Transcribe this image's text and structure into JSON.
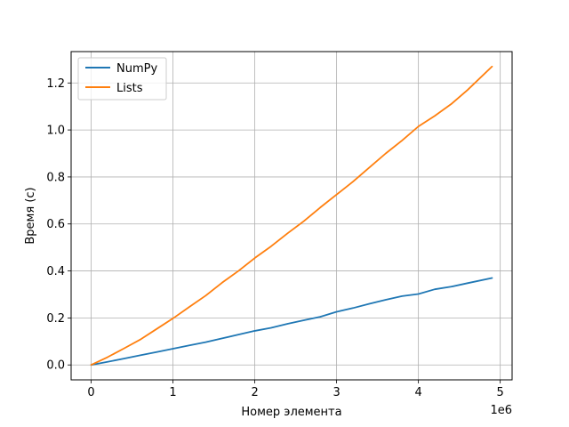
{
  "chart_data": {
    "type": "line",
    "xlabel": "Номер элемента",
    "ylabel": "Время (с)",
    "x_offset_text": "1e6",
    "x_scale": 1000000,
    "xlim": [
      -0.245,
      5.145
    ],
    "ylim": [
      -0.0635,
      1.3335
    ],
    "xticks": [
      0,
      1,
      2,
      3,
      4,
      5
    ],
    "xtick_labels": [
      "0",
      "1",
      "2",
      "3",
      "4",
      "5"
    ],
    "yticks": [
      0.0,
      0.2,
      0.4,
      0.6,
      0.8,
      1.0,
      1.2
    ],
    "ytick_labels": [
      "0.0",
      "0.2",
      "0.4",
      "0.6",
      "0.8",
      "1.0",
      "1.2"
    ],
    "grid": true,
    "legend_position": "top-left",
    "x": [
      0,
      0.2,
      0.4,
      0.6,
      0.8,
      1.0,
      1.2,
      1.4,
      1.6,
      1.8,
      2.0,
      2.2,
      2.4,
      2.6,
      2.8,
      3.0,
      3.2,
      3.4,
      3.6,
      3.8,
      4.0,
      4.2,
      4.4,
      4.6,
      4.9
    ],
    "series": [
      {
        "name": "NumPy",
        "color": "#1f77b4",
        "values": [
          0.0,
          0.013,
          0.027,
          0.041,
          0.055,
          0.069,
          0.083,
          0.097,
          0.113,
          0.129,
          0.145,
          0.158,
          0.175,
          0.19,
          0.205,
          0.226,
          0.242,
          0.26,
          0.277,
          0.293,
          0.302,
          0.322,
          0.333,
          0.348,
          0.37
        ]
      },
      {
        "name": "Lists",
        "color": "#ff7f0e",
        "values": [
          0.0,
          0.033,
          0.07,
          0.108,
          0.153,
          0.198,
          0.247,
          0.295,
          0.35,
          0.4,
          0.455,
          0.505,
          0.56,
          0.612,
          0.67,
          0.725,
          0.78,
          0.84,
          0.9,
          0.955,
          1.015,
          1.06,
          1.11,
          1.17,
          1.27
        ]
      }
    ]
  }
}
